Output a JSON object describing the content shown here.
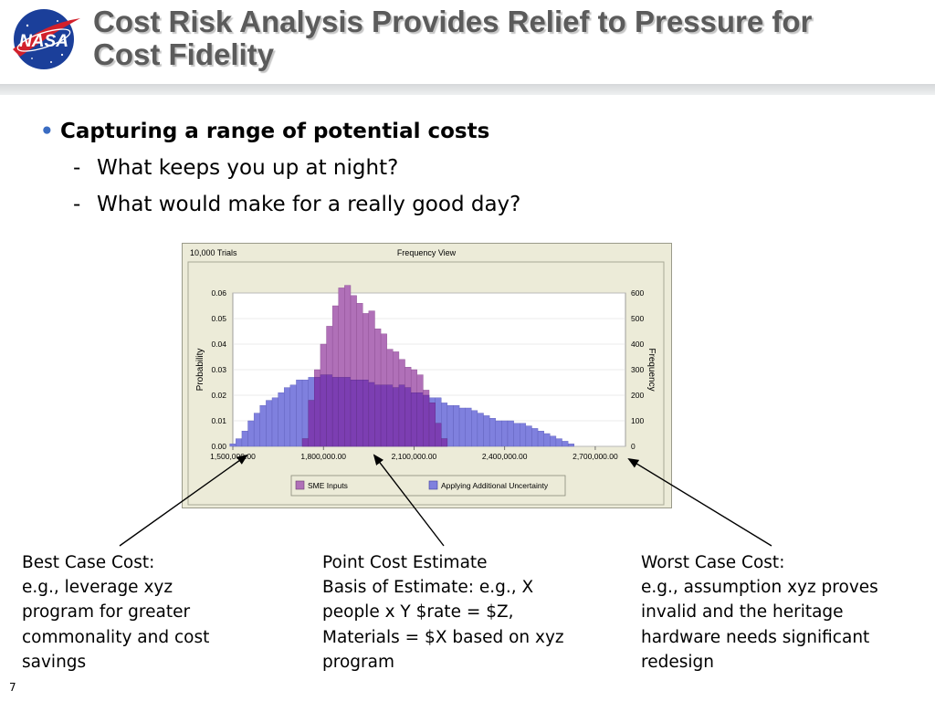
{
  "slide": {
    "title_line1": "Cost Risk Analysis Provides Relief to Pressure for",
    "title_line2": "Cost Fidelity",
    "logo_text": "NASA",
    "bullet": "Capturing a range of potential costs",
    "sub_bullets": [
      "What keeps you up at night?",
      "What would make for a really good day?"
    ],
    "page_number": "7",
    "accent_color": "#3a6cc2"
  },
  "callouts": {
    "best": [
      "Best Case Cost:",
      "e.g., leverage xyz",
      "program for greater",
      "commonality and cost",
      "savings"
    ],
    "point": [
      "Point Cost Estimate",
      "Basis of Estimate: e.g., X",
      "people x Y $rate = $Z,",
      "Materials = $X based on xyz",
      "program"
    ],
    "worst": [
      "Worst Case Cost:",
      "e.g., assumption xyz proves",
      "invalid and the heritage",
      "hardware needs significant",
      "redesign"
    ]
  },
  "chart_data": {
    "type": "bar",
    "title": "Frequency View",
    "trials_label": "10,000 Trials",
    "ylabel": "Probability",
    "y2label": "Frequency",
    "ylim": [
      0,
      0.06
    ],
    "y2lim": [
      0,
      600
    ],
    "xlim": [
      1500000,
      2800000
    ],
    "xticks": [
      1500000,
      1800000,
      2100000,
      2400000,
      2700000
    ],
    "xtick_labels": [
      "1,500,000.00",
      "1,800,000.00",
      "2,100,000.00",
      "2,400,000.00",
      "2,700,000.00"
    ],
    "yticks": [
      0,
      0.01,
      0.02,
      0.03,
      0.04,
      0.05,
      0.06
    ],
    "ytick_labels": [
      "0.00",
      "0.01",
      "0.02",
      "0.03",
      "0.04",
      "0.05",
      "0.06"
    ],
    "y2tick_labels": [
      "0",
      "100",
      "200",
      "300",
      "400",
      "500",
      "600"
    ],
    "bin_width": 20000,
    "series": [
      {
        "name": "Applying Additional Uncertainty",
        "color": "#7f80de",
        "start": 1490000,
        "values": [
          0.001,
          0.003,
          0.006,
          0.01,
          0.013,
          0.016,
          0.018,
          0.019,
          0.021,
          0.023,
          0.024,
          0.026,
          0.026,
          0.027,
          0.027,
          0.028,
          0.028,
          0.027,
          0.027,
          0.027,
          0.026,
          0.026,
          0.026,
          0.025,
          0.024,
          0.024,
          0.024,
          0.023,
          0.024,
          0.023,
          0.021,
          0.021,
          0.02,
          0.019,
          0.019,
          0.017,
          0.016,
          0.016,
          0.015,
          0.015,
          0.014,
          0.013,
          0.012,
          0.011,
          0.01,
          0.01,
          0.01,
          0.009,
          0.009,
          0.008,
          0.007,
          0.006,
          0.005,
          0.004,
          0.003,
          0.002,
          0.001
        ]
      },
      {
        "name": "SME Inputs",
        "color": "#b070b8",
        "start": 1730000,
        "values": [
          0.003,
          0.018,
          0.03,
          0.04,
          0.047,
          0.055,
          0.062,
          0.063,
          0.059,
          0.056,
          0.052,
          0.053,
          0.046,
          0.044,
          0.038,
          0.037,
          0.034,
          0.031,
          0.03,
          0.028,
          0.022,
          0.017,
          0.009,
          0.003
        ]
      }
    ],
    "overlap_color": "#7c3eb2",
    "legend_position": "bottom"
  }
}
